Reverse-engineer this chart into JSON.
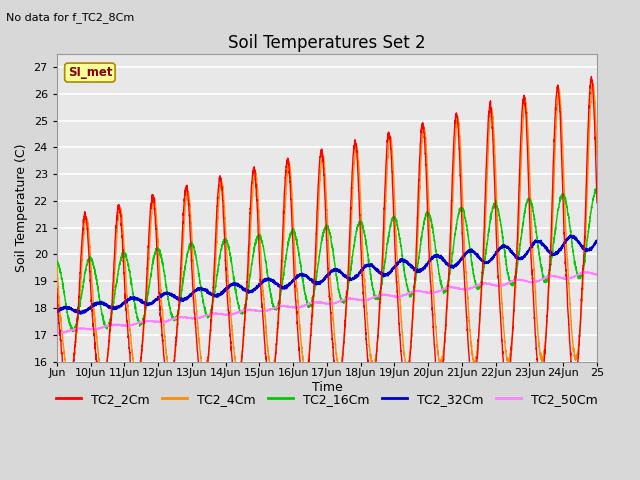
{
  "title": "Soil Temperatures Set 2",
  "subtitle": "No data for f_TC2_8Cm",
  "xlabel": "Time",
  "ylabel": "Soil Temperature (C)",
  "ylim": [
    16.0,
    27.5
  ],
  "yticks": [
    16.0,
    17.0,
    18.0,
    19.0,
    20.0,
    21.0,
    22.0,
    23.0,
    24.0,
    25.0,
    26.0,
    27.0
  ],
  "xtick_labels": [
    "Jun",
    "10Jun",
    "11Jun",
    "12Jun",
    "13Jun",
    "14Jun",
    "15Jun",
    "16Jun",
    "17Jun",
    "18Jun",
    "19Jun",
    "20Jun",
    "21Jun",
    "22Jun",
    "23Jun",
    "24Jun",
    "25"
  ],
  "start_day": 9,
  "end_day": 25,
  "n_points": 3840,
  "colors": {
    "TC2_2Cm": "#FF0000",
    "TC2_4Cm": "#FF8C00",
    "TC2_16Cm": "#00CC00",
    "TC2_32Cm": "#0000CC",
    "TC2_50Cm": "#FF80FF"
  },
  "legend_labels": [
    "TC2_2Cm",
    "TC2_4Cm",
    "TC2_16Cm",
    "TC2_32Cm",
    "TC2_50Cm"
  ],
  "legend_colors": [
    "#FF0000",
    "#FF8C00",
    "#00CC00",
    "#0000CC",
    "#FF80FF"
  ],
  "si_met_box_color": "#FFFF99",
  "si_met_text_color": "#8B0000",
  "background_color": "#D8D8D8",
  "plot_bg_color": "#E8E8E8",
  "grid_color": "#FFFFFF",
  "title_fontsize": 12,
  "axis_label_fontsize": 9,
  "tick_fontsize": 8,
  "legend_fontsize": 9,
  "figwidth": 6.4,
  "figheight": 4.8,
  "dpi": 100
}
